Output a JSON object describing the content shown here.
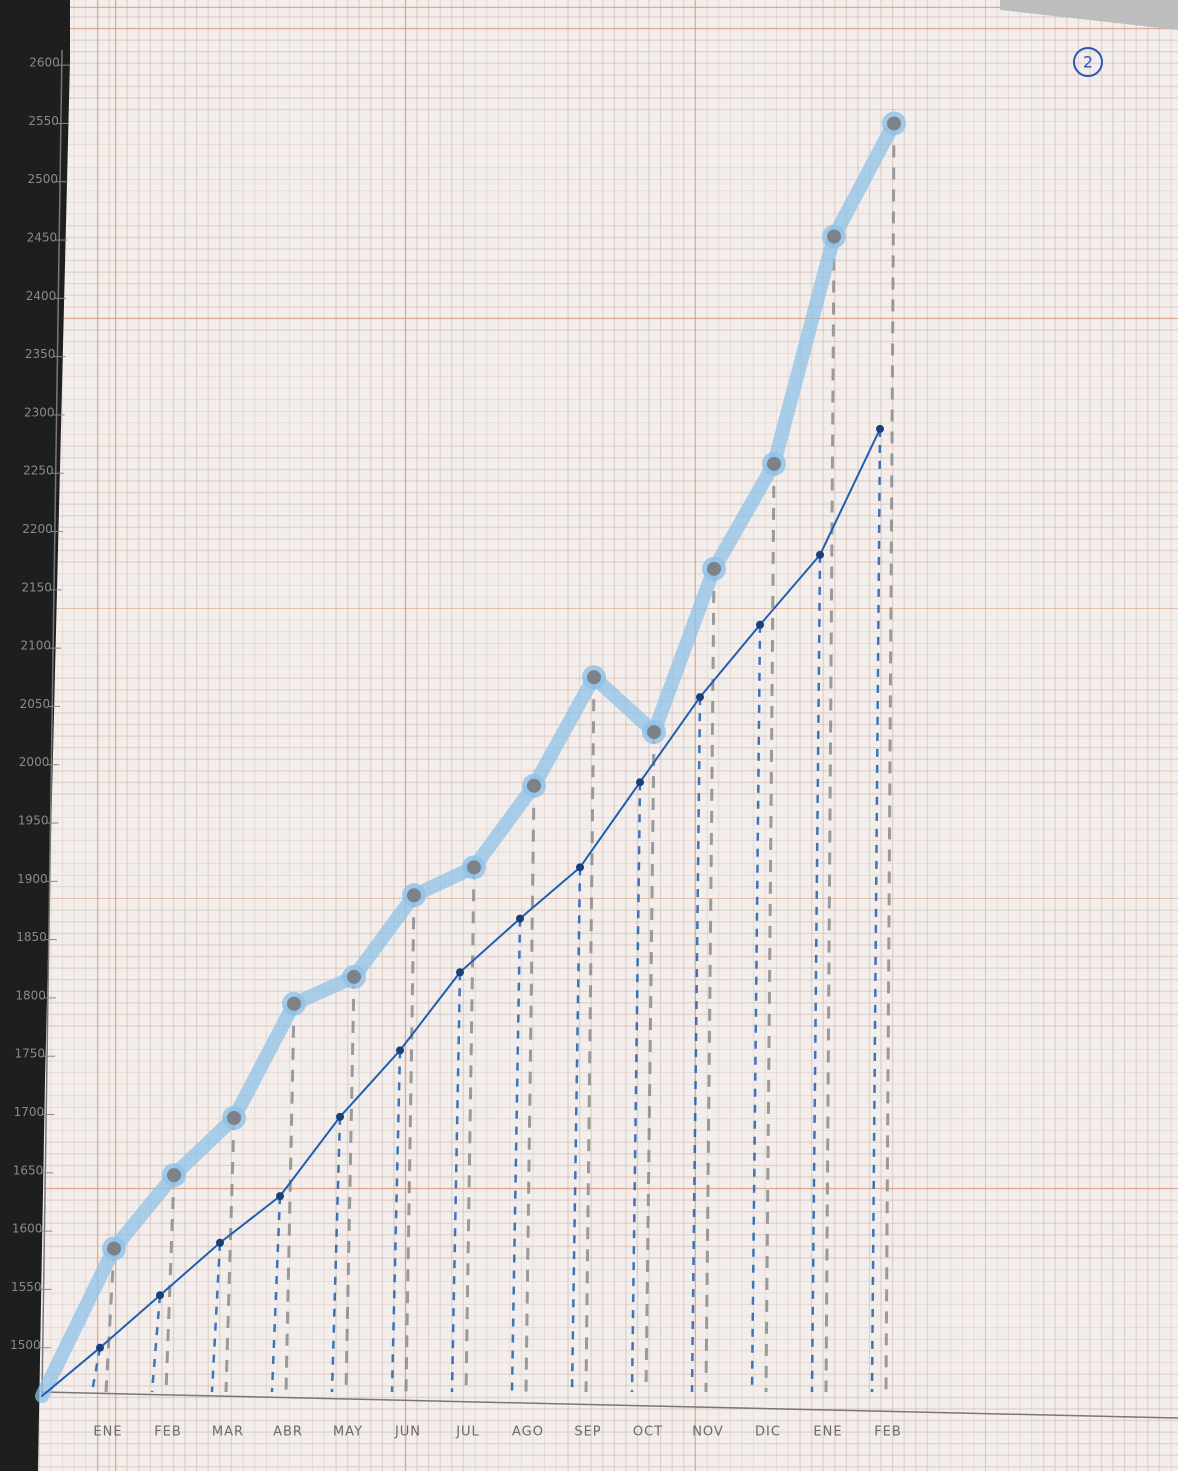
{
  "annotation": "2",
  "chart_data": {
    "type": "line",
    "categories": [
      "ENE",
      "FEB",
      "MAR",
      "ABR",
      "MAY",
      "JUN",
      "JUL",
      "AGO",
      "SEP",
      "OCT",
      "NOV",
      "DIC",
      "ENE",
      "FEB"
    ],
    "series": [
      {
        "color": "#8fc2e8",
        "values": [
          1585,
          1648,
          1697,
          1795,
          1818,
          1888,
          1912,
          1982,
          2075,
          2028,
          2168,
          2258,
          2453,
          2550
        ]
      },
      {
        "color": "#1f5fb0",
        "values": [
          1500,
          1545,
          1590,
          1630,
          1698,
          1755,
          1822,
          1868,
          1912,
          1985,
          2058,
          2120,
          2180,
          2288
        ]
      }
    ],
    "ylim": [
      1450,
      2625
    ],
    "yticks": [
      1500,
      1550,
      1600,
      1650,
      1700,
      1750,
      1800,
      1850,
      1900,
      1950,
      2000,
      2050,
      2100,
      2150,
      2200,
      2250,
      2300,
      2350,
      2400,
      2450,
      2500,
      2550,
      2600
    ]
  }
}
